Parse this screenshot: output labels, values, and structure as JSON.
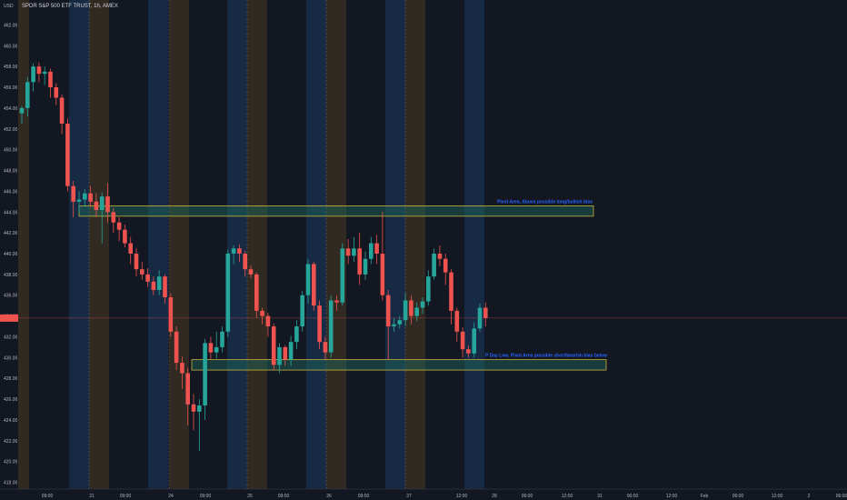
{
  "header": {
    "currency": "USD",
    "symbol_title": "SPDR S&P 500 ETF TRUST, 1h, AMEX"
  },
  "colors": {
    "background": "#131722",
    "up": "#26a69a",
    "down": "#ef5350",
    "zone_border": "#c9b23c",
    "zone_fill": "#1f6b5e",
    "annotation_text": "#2962ff",
    "price_label_bg": "#ef5350",
    "blue_band": "#1c3a5e",
    "orange_band": "#4a3a22"
  },
  "chart_data": {
    "type": "candlestick",
    "title": "SPDR S&P 500 ETF TRUST, 1h, AMEX",
    "ylim": [
      417,
      463
    ],
    "y_ticks": [
      "462.00",
      "460.00",
      "458.00",
      "456.00",
      "454.00",
      "452.00",
      "450.00",
      "448.00",
      "446.00",
      "444.00",
      "442.00",
      "440.00",
      "438.00",
      "436.00",
      "434.00",
      "432.00",
      "430.00",
      "428.00",
      "426.00",
      "424.00",
      "422.00",
      "420.00",
      "418.00"
    ],
    "x_ticks": [
      "09:00",
      "21",
      "09:00",
      "24",
      "09:00",
      "25",
      "09:00",
      "26",
      "09:00",
      "27",
      "12:00",
      "28",
      "06:00",
      "12:00",
      "31",
      "06:00",
      "12:00",
      "Feb",
      "06:00",
      "12:00",
      "2",
      "06:00"
    ],
    "current_price_label": "",
    "annotations": [
      "Pivot Area, Above possible long/bullish bias",
      "P Day Low, Pivot Area possible short/bearish bias below"
    ],
    "zones": [
      {
        "name": "pivot-area",
        "low": 443.6,
        "high": 444.6
      },
      {
        "name": "p-day-low",
        "low": 428.8,
        "high": 429.8
      }
    ],
    "candles": [
      [
        453.5,
        454.0,
        452.5,
        454.2
      ],
      [
        454.0,
        456.5,
        453.2,
        457.0
      ],
      [
        456.5,
        458.0,
        455.6,
        458.3
      ],
      [
        458.0,
        457.3,
        456.5,
        458.4
      ],
      [
        457.3,
        457.5,
        456.2,
        458.0
      ],
      [
        457.5,
        456.0,
        455.0,
        457.8
      ],
      [
        456.0,
        455.0,
        454.3,
        456.4
      ],
      [
        455.0,
        452.5,
        451.5,
        455.3
      ],
      [
        452.5,
        446.5,
        446.0,
        453.0
      ],
      [
        446.5,
        445.0,
        443.5,
        447.0
      ],
      [
        445.0,
        445.2,
        444.0,
        446.0
      ],
      [
        445.2,
        445.8,
        444.5,
        446.2
      ],
      [
        445.8,
        445.0,
        444.5,
        446.5
      ],
      [
        445.0,
        444.2,
        443.5,
        445.8
      ],
      [
        444.2,
        445.5,
        441.0,
        445.9
      ],
      [
        445.5,
        444.0,
        443.0,
        446.8
      ],
      [
        444.0,
        443.0,
        442.0,
        444.4
      ],
      [
        443.0,
        442.3,
        441.2,
        443.5
      ],
      [
        442.3,
        441.0,
        440.6,
        442.8
      ],
      [
        441.0,
        440.0,
        439.0,
        441.6
      ],
      [
        440.0,
        438.5,
        437.8,
        440.5
      ],
      [
        438.5,
        438.0,
        437.5,
        439.2
      ],
      [
        438.0,
        437.3,
        436.8,
        438.6
      ],
      [
        437.3,
        436.5,
        436.0,
        437.8
      ],
      [
        436.5,
        437.8,
        436.0,
        438.4
      ],
      [
        437.8,
        435.8,
        435.2,
        438.0
      ],
      [
        435.8,
        432.5,
        432.0,
        436.2
      ],
      [
        432.5,
        429.5,
        428.8,
        433.0
      ],
      [
        429.5,
        428.5,
        427.0,
        430.1
      ],
      [
        428.5,
        425.5,
        423.5,
        429.0
      ],
      [
        425.5,
        424.8,
        423.0,
        426.5
      ],
      [
        424.8,
        425.4,
        421.0,
        426.0
      ],
      [
        425.4,
        431.4,
        424.0,
        431.8
      ],
      [
        431.4,
        430.5,
        429.8,
        432.0
      ],
      [
        430.5,
        431.0,
        429.9,
        432.5
      ],
      [
        431.0,
        432.5,
        430.5,
        433.0
      ],
      [
        432.5,
        440.0,
        432.0,
        440.4
      ],
      [
        440.0,
        440.5,
        439.0,
        440.8
      ],
      [
        440.5,
        440.0,
        439.2,
        440.9
      ],
      [
        440.0,
        438.5,
        437.8,
        440.3
      ],
      [
        438.5,
        438.0,
        437.6,
        438.9
      ],
      [
        438.0,
        434.5,
        433.8,
        438.2
      ],
      [
        434.5,
        434.0,
        433.2,
        434.8
      ],
      [
        434.0,
        433.0,
        432.0,
        434.3
      ],
      [
        433.0,
        429.3,
        428.8,
        433.3
      ],
      [
        429.3,
        431.0,
        428.5,
        431.4
      ],
      [
        431.0,
        429.8,
        429.2,
        431.2
      ],
      [
        429.8,
        431.5,
        429.2,
        432.1
      ],
      [
        431.5,
        433.0,
        430.8,
        433.6
      ],
      [
        433.0,
        436.0,
        432.5,
        436.4
      ],
      [
        436.0,
        439.0,
        435.2,
        439.5
      ],
      [
        439.0,
        435.0,
        434.5,
        439.2
      ],
      [
        435.0,
        431.5,
        430.8,
        435.5
      ],
      [
        431.5,
        430.5,
        429.8,
        432.0
      ],
      [
        430.5,
        435.5,
        430.0,
        436.0
      ],
      [
        435.5,
        435.3,
        434.5,
        436.0
      ],
      [
        435.3,
        440.5,
        435.0,
        441.0
      ],
      [
        440.5,
        439.8,
        439.0,
        441.4
      ],
      [
        439.8,
        440.5,
        439.2,
        441.6
      ],
      [
        440.5,
        438.0,
        437.0,
        442.0
      ],
      [
        438.0,
        439.5,
        437.5,
        440.2
      ],
      [
        439.5,
        441.0,
        439.0,
        441.6
      ],
      [
        441.0,
        440.0,
        439.0,
        441.8
      ],
      [
        440.0,
        436.0,
        435.5,
        444.0
      ],
      [
        436.0,
        433.0,
        429.8,
        436.5
      ],
      [
        433.0,
        433.2,
        432.5,
        433.8
      ],
      [
        433.2,
        433.6,
        432.8,
        434.0
      ],
      [
        433.6,
        435.5,
        433.0,
        436.2
      ],
      [
        435.5,
        434.0,
        433.2,
        436.0
      ],
      [
        434.0,
        434.8,
        433.5,
        435.3
      ],
      [
        434.8,
        435.4,
        434.2,
        435.8
      ],
      [
        435.4,
        437.8,
        435.0,
        438.4
      ],
      [
        437.8,
        440.0,
        437.5,
        440.5
      ],
      [
        440.0,
        439.5,
        438.8,
        440.8
      ],
      [
        439.5,
        438.2,
        437.0,
        440.0
      ],
      [
        438.2,
        434.5,
        433.2,
        438.5
      ],
      [
        434.5,
        432.5,
        431.5,
        434.8
      ],
      [
        432.5,
        430.8,
        430.0,
        432.9
      ],
      [
        430.8,
        430.4,
        430.0,
        431.2
      ],
      [
        430.4,
        432.8,
        430.0,
        433.4
      ],
      [
        432.8,
        434.8,
        432.5,
        435.2
      ],
      [
        434.8,
        433.8,
        433.0,
        435.3
      ]
    ]
  }
}
